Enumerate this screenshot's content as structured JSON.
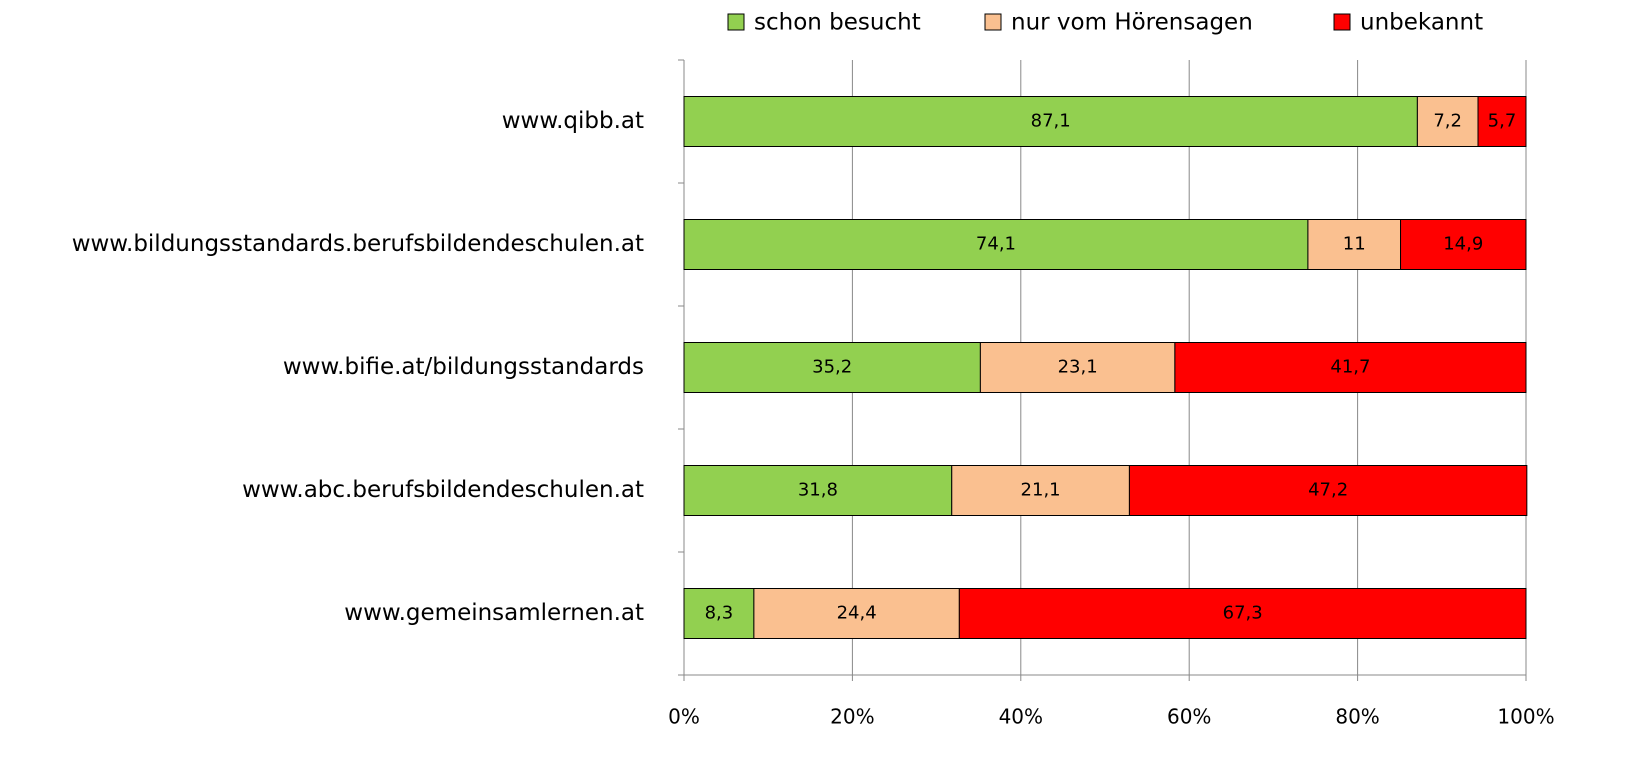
{
  "chart_data": {
    "type": "stacked-bar-horizontal",
    "categories": [
      "www.qibb.at",
      "www.bildungsstandards.berufsbildendeschulen.at",
      "www.bifie.at/bildungsstandards",
      "www.abc.berufsbildendeschulen.at",
      "www.gemeinsamlernen.at"
    ],
    "series": [
      {
        "name": "schon besucht",
        "color": "#92d050",
        "values": [
          87.1,
          74.1,
          35.2,
          31.8,
          8.3
        ],
        "value_labels": [
          "87,1",
          "74,1",
          "35,2",
          "31,8",
          "8,3"
        ]
      },
      {
        "name": "nur vom Hörensagen",
        "color": "#fac090",
        "values": [
          7.2,
          11,
          23.1,
          21.1,
          24.4
        ],
        "value_labels": [
          "7,2",
          "11",
          "23,1",
          "21,1",
          "24,4"
        ]
      },
      {
        "name": "unbekannt",
        "color": "#ff0000",
        "values": [
          5.7,
          14.9,
          41.7,
          47.2,
          67.3
        ],
        "value_labels": [
          "5,7",
          "14,9",
          "41,7",
          "47,2",
          "67,3"
        ]
      }
    ],
    "xlim": [
      0,
      100
    ],
    "xticks": [
      {
        "value": 0,
        "label": "0%"
      },
      {
        "value": 20,
        "label": "20%"
      },
      {
        "value": 40,
        "label": "40%"
      },
      {
        "value": 60,
        "label": "60%"
      },
      {
        "value": 80,
        "label": "80%"
      },
      {
        "value": 100,
        "label": "100%"
      }
    ],
    "grid": true,
    "legend": "top"
  }
}
